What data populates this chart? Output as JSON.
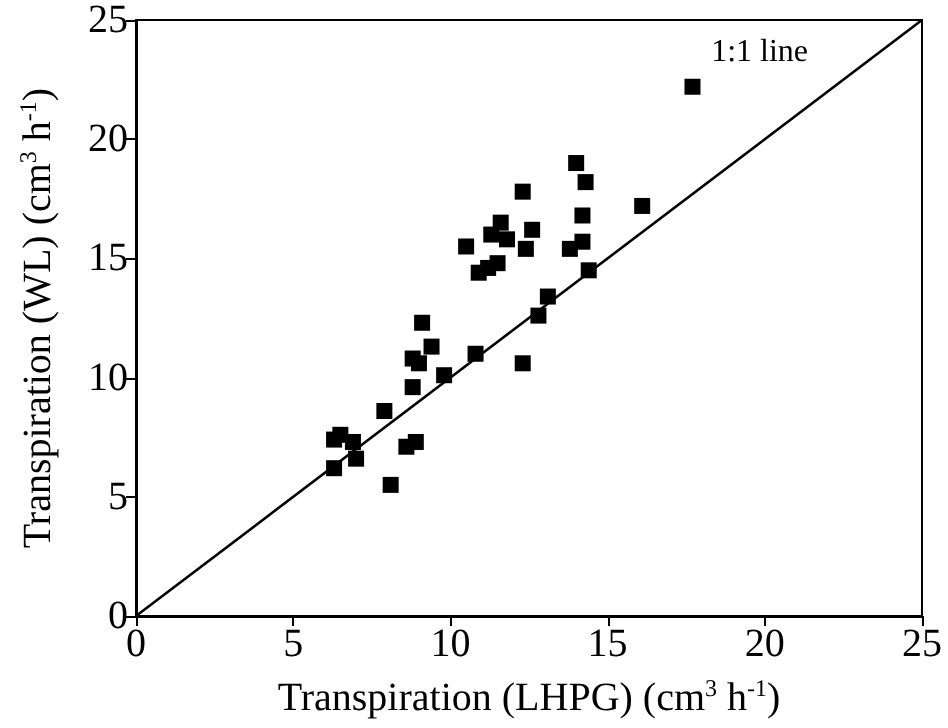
{
  "chart_data": {
    "type": "scatter",
    "xlabel": "Transpiration (LHPG) (cm$^{3}$ h$^{-1}$)",
    "ylabel": "Transpiration (WL) (cm$^{3}$ h$^{-1}$)",
    "xlim": [
      0,
      25
    ],
    "ylim": [
      0,
      25
    ],
    "xticks": [
      0,
      5,
      10,
      15,
      20,
      25
    ],
    "yticks": [
      0,
      5,
      10,
      15,
      20,
      25
    ],
    "grid": false,
    "annotations": [
      "1:1 line"
    ],
    "series": [
      {
        "color": "#000000",
        "marker": "square",
        "x": [
          6.3,
          6.5,
          6.9,
          6.3,
          7.0,
          7.9,
          8.1,
          8.6,
          8.9,
          8.8,
          8.8,
          9.0,
          9.1,
          9.4,
          9.8,
          10.5,
          10.8,
          10.9,
          11.2,
          11.5,
          11.3,
          11.6,
          11.8,
          12.3,
          12.4,
          12.6,
          12.3,
          12.8,
          13.1,
          13.8,
          14.0,
          14.3,
          14.2,
          14.2,
          14.4,
          16.1,
          17.7
        ],
        "values": [
          7.4,
          7.6,
          7.3,
          6.2,
          6.6,
          8.6,
          5.5,
          7.1,
          7.3,
          9.6,
          10.8,
          10.6,
          12.3,
          11.3,
          10.1,
          15.5,
          11.0,
          14.4,
          14.6,
          14.8,
          16.0,
          16.5,
          15.8,
          17.8,
          15.4,
          16.2,
          10.6,
          12.6,
          13.4,
          15.4,
          19.0,
          18.2,
          16.8,
          15.7,
          14.5,
          17.2,
          22.2
        ]
      },
      {
        "type": "line",
        "color": "#000000",
        "marker": "none",
        "line_style": "solid",
        "x": [
          0,
          25
        ],
        "values": [
          0,
          25
        ]
      }
    ]
  }
}
